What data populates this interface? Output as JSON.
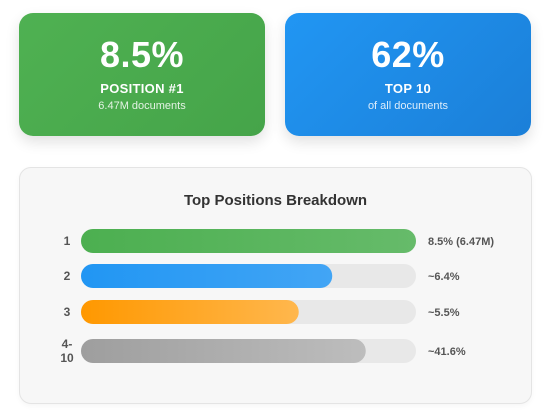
{
  "cards": [
    {
      "value": "8.5%",
      "label": "POSITION #1",
      "sub": "6.47M documents",
      "color": "#4caf50"
    },
    {
      "value": "62%",
      "label": "TOP 10",
      "sub": "of all documents",
      "color": "#2196f3"
    }
  ],
  "chart_data": {
    "type": "bar",
    "orientation": "horizontal",
    "title": "Top Positions Breakdown",
    "categories": [
      "1",
      "2",
      "3",
      "4-\n10"
    ],
    "values": [
      100,
      75,
      65,
      85
    ],
    "value_unit": "percent of bar track filled",
    "value_labels": [
      "8.5% (6.47M)",
      "~6.4%",
      "~5.5%",
      "~41.6%"
    ],
    "colors": [
      [
        "#4caf50",
        "#66bb6a"
      ],
      [
        "#2196f3",
        "#42a5f5"
      ],
      [
        "#ff9800",
        "#ffb74d"
      ],
      [
        "#9e9e9e",
        "#bdbdbd"
      ]
    ],
    "track_color": "#e8e8e8",
    "grid": false,
    "legend": "none"
  }
}
